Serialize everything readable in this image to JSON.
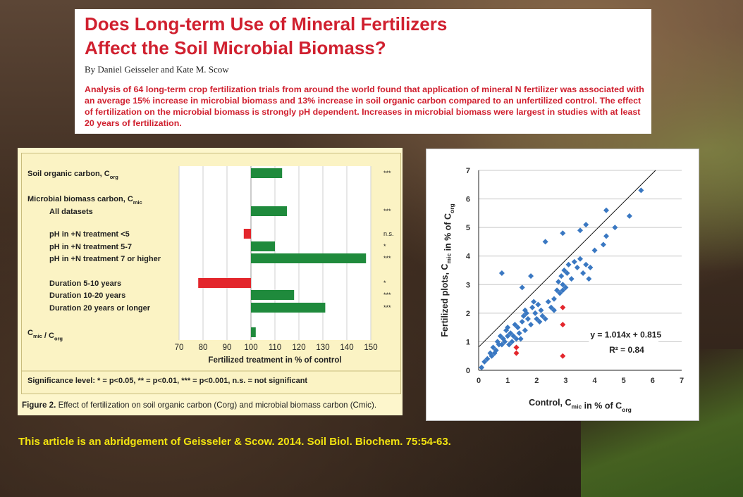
{
  "header": {
    "title_line1": "Does Long-term Use of Mineral Fertilizers",
    "title_line2": "Affect the Soil Microbial Biomass?",
    "byline": "By Daniel Geisseler and Kate M. Scow",
    "summary": "Analysis of 64 long-term crop fertilization trials from around the world found that application of mineral N fertilizer was associated with an average 15% increase in microbial biomass and 13% increase in soil organic carbon compared to an unfertilized control. The effect of fertilization on the microbial biomass is strongly pH dependent. Increases in microbial biomass were largest in studies with at least 20 years of fertilization."
  },
  "bar_figure": {
    "caption_label": "Figure 2.",
    "caption_text": "Effect of fertilization on soil organic carbon (Corg) and microbial biomass carbon (Cmic).",
    "group_label": "Microbial biomass carbon, Cmic",
    "significance_note": "Significance level: * = p<0.05, ** = p<0.01, *** = p<0.001, n.s. = not significant"
  },
  "citation": "This article is an abridgement of Geisseler & Scow. 2014. Soil Biol. Biochem. 75:54-63.",
  "chart_data": [
    {
      "type": "bar",
      "orientation": "horizontal",
      "xlabel": "Fertilized treatment in % of control",
      "xlim": [
        70,
        150
      ],
      "xticks": [
        70,
        80,
        90,
        100,
        110,
        120,
        130,
        140,
        150
      ],
      "baseline": 100,
      "categories": [
        "Soil organic carbon, Corg",
        "All datasets",
        "pH in +N treatment <5",
        "pH in +N treatment 5-7",
        "pH in +N treatment 7 or higher",
        "Duration 5-10 years",
        "Duration 10-20 years",
        "Duration 20 years or longer",
        "Cmic / Corg"
      ],
      "values": [
        113,
        115,
        97,
        110,
        148,
        78,
        118,
        131,
        102
      ],
      "significance": [
        "***",
        "***",
        "n.s.",
        "*",
        "***",
        "*",
        "***",
        "***",
        ""
      ],
      "colors": {
        "increase": "#1f8a3c",
        "decrease": "#e3262c"
      },
      "grid": "vertical"
    },
    {
      "type": "scatter",
      "xlabel": "Control, Cmic in % of Corg",
      "ylabel": "Fertilized plots, Cmic in % of Corg",
      "xlim": [
        0,
        7
      ],
      "ylim": [
        0,
        7
      ],
      "xticks": [
        0,
        1,
        2,
        3,
        4,
        5,
        6,
        7
      ],
      "yticks": [
        0,
        1,
        2,
        3,
        4,
        5,
        6,
        7
      ],
      "grid": "horizontal",
      "regression": {
        "slope": 1.014,
        "intercept": 0.815,
        "equation": "y = 1.014x + 0.815",
        "r2": "R² = 0.84"
      },
      "series": [
        {
          "color": "#3a78c2",
          "points": [
            [
              0.1,
              0.1
            ],
            [
              0.2,
              0.3
            ],
            [
              0.3,
              0.4
            ],
            [
              0.4,
              0.6
            ],
            [
              0.45,
              0.5
            ],
            [
              0.5,
              0.8
            ],
            [
              0.55,
              0.6
            ],
            [
              0.6,
              0.7
            ],
            [
              0.65,
              1.0
            ],
            [
              0.7,
              0.9
            ],
            [
              0.75,
              1.2
            ],
            [
              0.8,
              0.9
            ],
            [
              0.85,
              1.1
            ],
            [
              0.9,
              1.0
            ],
            [
              0.95,
              1.4
            ],
            [
              1.0,
              1.2
            ],
            [
              1.0,
              1.5
            ],
            [
              1.05,
              0.9
            ],
            [
              1.1,
              1.3
            ],
            [
              1.15,
              1.0
            ],
            [
              1.2,
              1.2
            ],
            [
              1.25,
              1.6
            ],
            [
              1.3,
              1.1
            ],
            [
              1.35,
              1.5
            ],
            [
              1.4,
              1.3
            ],
            [
              1.45,
              1.1
            ],
            [
              1.5,
              1.7
            ],
            [
              1.55,
              1.9
            ],
            [
              1.6,
              1.4
            ],
            [
              1.65,
              2.0
            ],
            [
              1.7,
              1.8
            ],
            [
              1.8,
              1.6
            ],
            [
              1.85,
              2.2
            ],
            [
              1.9,
              2.4
            ],
            [
              1.95,
              2.0
            ],
            [
              2.0,
              1.8
            ],
            [
              2.05,
              2.3
            ],
            [
              2.1,
              1.7
            ],
            [
              2.15,
              2.1
            ],
            [
              2.2,
              1.9
            ],
            [
              2.3,
              1.8
            ],
            [
              2.4,
              2.4
            ],
            [
              2.5,
              2.2
            ],
            [
              2.6,
              2.5
            ],
            [
              2.7,
              2.8
            ],
            [
              2.75,
              3.1
            ],
            [
              2.8,
              2.7
            ],
            [
              2.85,
              3.3
            ],
            [
              2.9,
              3.0
            ],
            [
              2.95,
              3.5
            ],
            [
              3.0,
              2.9
            ],
            [
              3.05,
              3.4
            ],
            [
              3.1,
              3.7
            ],
            [
              3.2,
              3.2
            ],
            [
              3.3,
              3.8
            ],
            [
              3.4,
              3.6
            ],
            [
              3.5,
              3.9
            ],
            [
              3.6,
              3.4
            ],
            [
              3.7,
              3.7
            ],
            [
              3.8,
              3.2
            ],
            [
              3.85,
              3.6
            ],
            [
              4.0,
              4.2
            ],
            [
              4.3,
              4.4
            ],
            [
              4.4,
              4.7
            ],
            [
              4.7,
              5.0
            ],
            [
              5.2,
              5.4
            ],
            [
              5.6,
              6.3
            ],
            [
              0.8,
              3.4
            ],
            [
              1.5,
              2.9
            ],
            [
              1.8,
              3.3
            ],
            [
              2.3,
              4.5
            ],
            [
              2.9,
              4.8
            ],
            [
              3.5,
              4.9
            ],
            [
              3.7,
              5.1
            ],
            [
              4.4,
              5.6
            ],
            [
              1.6,
              2.1
            ],
            [
              2.6,
              2.1
            ],
            [
              2.9,
              2.8
            ]
          ]
        },
        {
          "color": "#e3262c",
          "points": [
            [
              1.3,
              0.6
            ],
            [
              1.3,
              0.8
            ],
            [
              2.9,
              0.5
            ],
            [
              2.9,
              1.6
            ],
            [
              2.9,
              2.2
            ]
          ]
        }
      ]
    }
  ]
}
